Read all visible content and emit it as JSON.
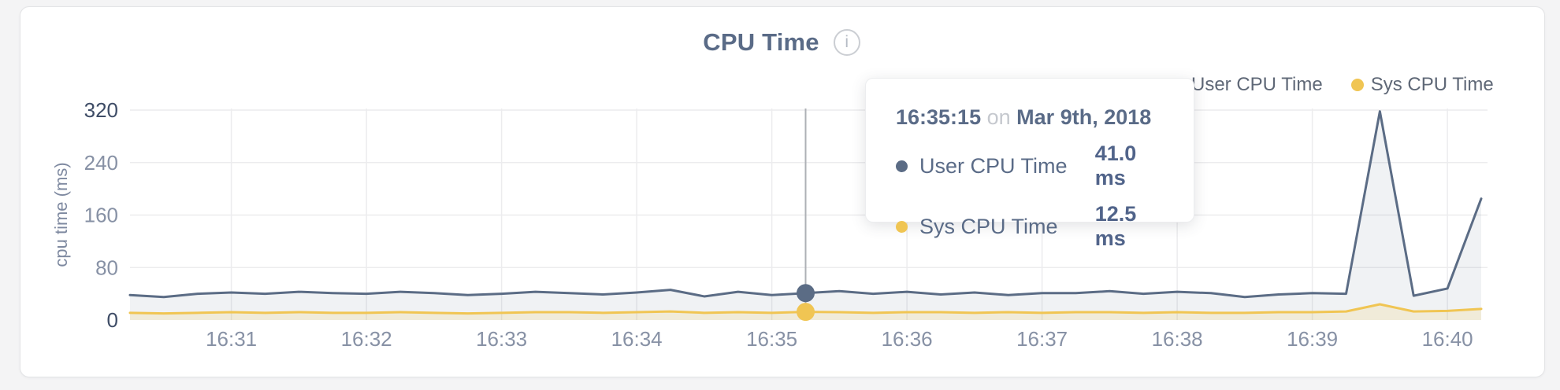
{
  "header": {
    "title": "CPU Time",
    "info_glyph": "i"
  },
  "legend": [
    {
      "label": "User CPU Time",
      "color": "#5b6c85"
    },
    {
      "label": "Sys CPU Time",
      "color": "#f0c553"
    }
  ],
  "tooltip": {
    "time": "16:35:15",
    "connector": "on",
    "date": "Mar 9th, 2018",
    "rows": [
      {
        "label": "User CPU Time",
        "value": "41.0 ms",
        "color": "#5b6c85"
      },
      {
        "label": "Sys CPU Time",
        "value": "12.5 ms",
        "color": "#f0c553"
      }
    ]
  },
  "chart_data": {
    "type": "area",
    "title": "CPU Time",
    "xlabel": "",
    "ylabel": "cpu time (ms)",
    "ylim": [
      0,
      320
    ],
    "y_ticks": [
      0,
      80,
      160,
      240,
      320
    ],
    "x_ticks": [
      "16:31",
      "16:32",
      "16:33",
      "16:34",
      "16:35",
      "16:36",
      "16:37",
      "16:38",
      "16:39",
      "16:40"
    ],
    "x_start": "16:30:15",
    "x_end": "16:40:15",
    "sample_interval_s": 15,
    "grid": true,
    "legend_position": "top-right",
    "x": [
      "16:30:15",
      "16:30:30",
      "16:30:45",
      "16:31:00",
      "16:31:15",
      "16:31:30",
      "16:31:45",
      "16:32:00",
      "16:32:15",
      "16:32:30",
      "16:32:45",
      "16:33:00",
      "16:33:15",
      "16:33:30",
      "16:33:45",
      "16:34:00",
      "16:34:15",
      "16:34:30",
      "16:34:45",
      "16:35:00",
      "16:35:15",
      "16:35:30",
      "16:35:45",
      "16:36:00",
      "16:36:15",
      "16:36:30",
      "16:36:45",
      "16:37:00",
      "16:37:15",
      "16:37:30",
      "16:37:45",
      "16:38:00",
      "16:38:15",
      "16:38:30",
      "16:38:45",
      "16:39:00",
      "16:39:15",
      "16:39:30",
      "16:39:45",
      "16:40:00",
      "16:40:15"
    ],
    "series": [
      {
        "name": "User CPU Time",
        "color": "#5b6c85",
        "fill": "rgba(91,108,133,0.09)",
        "values": [
          38,
          35,
          40,
          42,
          40,
          43,
          41,
          40,
          43,
          41,
          38,
          40,
          43,
          41,
          39,
          42,
          46,
          36,
          43,
          38,
          41,
          44,
          40,
          43,
          39,
          42,
          38,
          41,
          41,
          44,
          40,
          43,
          41,
          35,
          39,
          41,
          40,
          318,
          37,
          48,
          185
        ]
      },
      {
        "name": "Sys CPU Time",
        "color": "#f0c553",
        "fill": "rgba(240,197,83,0.16)",
        "values": [
          11,
          10,
          11,
          12,
          11,
          12,
          11,
          11,
          12,
          11,
          10,
          11,
          12,
          12,
          11,
          12,
          13,
          11,
          12,
          11,
          12.5,
          12,
          11,
          12,
          12,
          11,
          12,
          11,
          12,
          12,
          11,
          12,
          11,
          11,
          12,
          12,
          13,
          24,
          13,
          14,
          17
        ]
      }
    ],
    "hover": {
      "index": 20,
      "time": "16:35:15",
      "date": "Mar 9th, 2018",
      "user_ms": 41.0,
      "sys_ms": 12.5
    },
    "colors": {
      "grid": "#ececee",
      "crosshair": "#aeb1b6",
      "tick_label": "#8791a5",
      "tick_label_emphasis": "#3e4c66",
      "axis_title": "#7e89a0"
    }
  }
}
